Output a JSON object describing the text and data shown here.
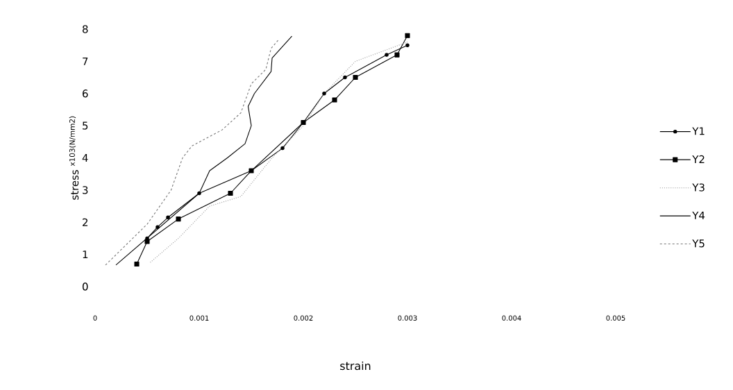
{
  "chart_data": {
    "type": "line",
    "xlabel": "strain",
    "ylabel": "stress $^{x103(N/mm2)}$",
    "xlim": [
      0,
      0.005
    ],
    "ylim": [
      0,
      8
    ],
    "xticks": [
      0,
      {
        "value": 0.001,
        "label": "0.001"
      },
      {
        "value": 0.002,
        "label": "0.002"
      },
      {
        "value": 0.003,
        "label": "0.003"
      },
      {
        "value": 0.004,
        "label": "0.004"
      },
      {
        "value": 0.005,
        "label": "0.005"
      }
    ],
    "yticks": [
      0,
      1,
      2,
      3,
      4,
      5,
      6,
      7,
      8
    ],
    "grid": false,
    "legend": "right",
    "series": [
      {
        "name": "Y1",
        "color": "#000000",
        "marker": "circle",
        "line_style": "solid",
        "x": [
          0.0005,
          0.0006,
          0.0007,
          0.001,
          0.0015,
          0.0018,
          0.002,
          0.0022,
          0.0024,
          0.0028,
          0.003
        ],
        "values": [
          1.5,
          1.85,
          2.15,
          2.9,
          3.6,
          4.3,
          5.1,
          6.0,
          6.5,
          7.2,
          7.5
        ]
      },
      {
        "name": "Y2",
        "color": "#000000",
        "marker": "square",
        "line_style": "solid",
        "x": [
          0.0004,
          0.0005,
          0.0008,
          0.0013,
          0.0015,
          0.002,
          0.0023,
          0.0025,
          0.0029,
          0.003
        ],
        "values": [
          0.7,
          1.4,
          2.1,
          2.9,
          3.6,
          5.1,
          5.8,
          6.5,
          7.2,
          7.8
        ]
      },
      {
        "name": "Y3",
        "color": "#999999",
        "marker": "none",
        "line_style": "dotted",
        "x": [
          0.00053,
          0.0008,
          0.0011,
          0.0014,
          0.0017,
          0.002,
          0.0022,
          0.0025,
          0.003
        ],
        "values": [
          0.75,
          1.5,
          2.5,
          2.8,
          4.0,
          5.0,
          6.0,
          7.0,
          7.6
        ]
      },
      {
        "name": "Y4",
        "color": "#000000",
        "marker": "none",
        "line_style": "solid",
        "x": [
          0.0002,
          0.001,
          0.0011,
          0.00127,
          0.00144,
          0.0015,
          0.00147,
          0.00153,
          0.00169,
          0.0017,
          0.00189
        ],
        "values": [
          0.67,
          2.9,
          3.6,
          4.0,
          4.44,
          5.0,
          5.6,
          6.0,
          6.68,
          7.1,
          7.78
        ]
      },
      {
        "name": "Y5",
        "color": "#777777",
        "marker": "none",
        "line_style": "dashed",
        "x": [
          0.0001,
          0.0005,
          0.00073,
          0.00084,
          0.00093,
          0.00122,
          0.0014,
          0.0015,
          0.00164,
          0.00169,
          0.00177
        ],
        "values": [
          0.67,
          1.94,
          3.0,
          4.0,
          4.37,
          4.87,
          5.4,
          6.3,
          6.75,
          7.4,
          7.7
        ]
      }
    ]
  }
}
